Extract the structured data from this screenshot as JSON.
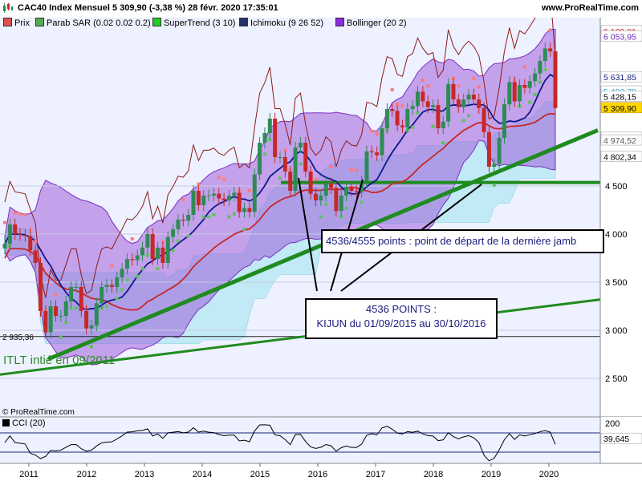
{
  "header": {
    "title": "CAC40 Index Mensuel 5 309,90 (-3,38 %) 28 févr. 2020 17:35:01",
    "brand": "www.ProRealTime.com"
  },
  "legend": [
    {
      "label": "Prix",
      "color": "#d9534f"
    },
    {
      "label": "Parab SAR (0.02 0.02 0.2)",
      "color": "#55aa55"
    },
    {
      "label": "SuperTrend (3 10)",
      "color": "#22cc22"
    },
    {
      "label": "Ichimoku (9 26 52)",
      "color": "#223366"
    },
    {
      "label": "Bollinger (20 2)",
      "color": "#8a2be2"
    }
  ],
  "annotations": {
    "box_a": "4536/4555 points : point de départ de la dernière jamb",
    "box_b_line1": "4536 POINTS :",
    "box_b_line2": "KIJUN du 01/09/2015 au 30/10/2016",
    "itlt": "ITLT intié en 09/2011",
    "level_left": "2 935,36",
    "copyright": "© ProRealTime.com"
  },
  "cci": {
    "label": "CCI (20)",
    "top_label": "200",
    "value": "39,645"
  },
  "colors": {
    "up": "#2e8b57",
    "down": "#c62828",
    "cloud_green": "#90ee90",
    "cloud_red": "#e6b8c8",
    "boll": "#9a52d8",
    "trend": "#1f8b1f"
  },
  "chart_data": {
    "type": "candlestick",
    "title": "CAC40 Index Mensuel",
    "period": "monthly",
    "x_range": [
      "2011-01",
      "2020-02"
    ],
    "x_ticks": [
      "2011",
      "2012",
      "2013",
      "2014",
      "2015",
      "2016",
      "2017",
      "2018",
      "2019",
      "2020"
    ],
    "y_ticks": [
      "4 500",
      "4 000",
      "3 500",
      "3 000",
      "2 500"
    ],
    "ylim": [
      2100,
      6250
    ],
    "last_close": 5309.9,
    "price_labels": [
      {
        "text": "6 109,81",
        "value": 6109.81,
        "color": "#c62828",
        "bg": "#ffffff"
      },
      {
        "text": "6 053,95",
        "value": 6053.95,
        "color": "#6a2bb5",
        "bg": "#ffffff"
      },
      {
        "text": "5 631,85",
        "value": 5631.85,
        "color": "#1a237e",
        "bg": "#ffffff"
      },
      {
        "text": "5 482,78",
        "value": 5482.78,
        "color": "#33b5e5",
        "bg": "#ffffff"
      },
      {
        "text": "5 428,15",
        "value": 5428.15,
        "color": "#000000",
        "bg": "#ffffff"
      },
      {
        "text": "5 309,90",
        "value": 5309.9,
        "color": "#000000",
        "bg": "#ffd700"
      },
      {
        "text": "5 001,93",
        "value": 5001.93,
        "color": "#1f8b1f",
        "bg": "#ffffff"
      },
      {
        "text": "4 974,52",
        "value": 4974.52,
        "color": "#555555",
        "bg": "#ffffff"
      },
      {
        "text": "4 802,34",
        "value": 4802.34,
        "color": "#000000",
        "bg": "#ffffff"
      }
    ],
    "close_series": [
      3900,
      4100,
      4000,
      3990,
      3980,
      3830,
      3700,
      3200,
      2980,
      3250,
      3150,
      3150,
      3300,
      3450,
      3450,
      3200,
      3020,
      3050,
      3280,
      3450,
      3470,
      3450,
      3550,
      3640,
      3740,
      3730,
      3780,
      3860,
      4000,
      3740,
      3860,
      3700,
      3970,
      4050,
      4150,
      4140,
      4200,
      4450,
      4300,
      4400,
      4400,
      4420,
      4370,
      4350,
      4400,
      4430,
      4230,
      4270,
      4230,
      4620,
      4950,
      5050,
      5200,
      4800,
      4800,
      4650,
      4450,
      4900,
      4950,
      4650,
      4420,
      4350,
      4400,
      4530,
      4480,
      4240,
      4400,
      4490,
      4450,
      4440,
      4550,
      4860,
      4850,
      4820,
      5100,
      5300,
      5280,
      5130,
      5110,
      5300,
      5330,
      5480,
      5380,
      5320,
      5340,
      5100,
      5170,
      5560,
      5400,
      5320,
      5400,
      5450,
      5400,
      5310,
      5060,
      4700,
      4730,
      5000,
      5350,
      5580,
      5380,
      5550,
      5520,
      5590,
      5670,
      5800,
      5930,
      5900,
      5309.9
    ],
    "annotated_levels": [
      {
        "label": "4536",
        "value": 4536
      },
      {
        "label": "2 935,36",
        "value": 2935.36
      }
    ],
    "cci_ylim": [
      -200,
      250
    ]
  }
}
